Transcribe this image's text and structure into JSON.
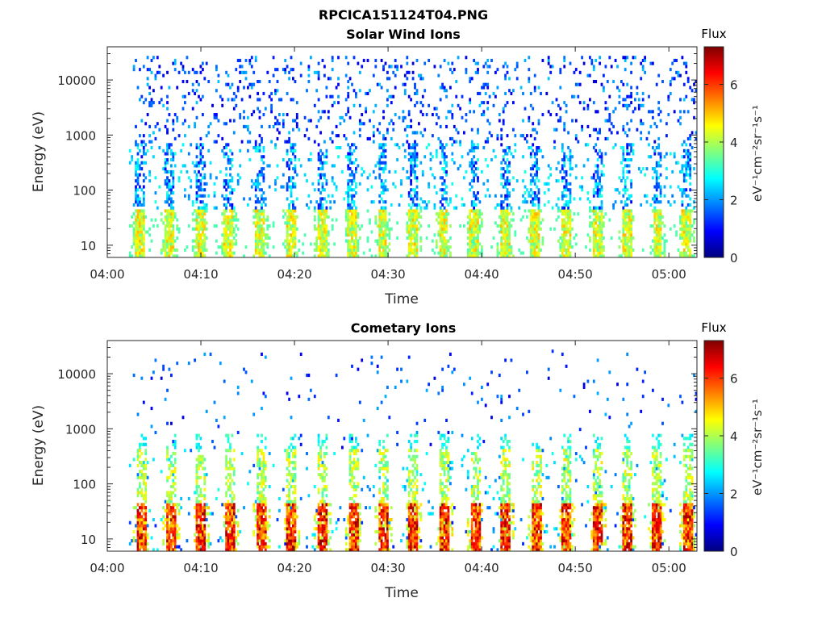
{
  "figure": {
    "title": "RPCICA151124T04.PNG"
  },
  "colormap": {
    "stops": [
      "#00007f",
      "#0000ff",
      "#007fff",
      "#00ffff",
      "#7fff7f",
      "#ffff00",
      "#ff7f00",
      "#ff0000",
      "#7f0000"
    ]
  },
  "chart_data": [
    {
      "type": "heatmap",
      "title": "Solar Wind Ions",
      "xlabel": "Time",
      "ylabel": "Energy (eV)",
      "y_scale": "log",
      "ylim": [
        6,
        40000
      ],
      "xlim": [
        "04:00",
        "05:03"
      ],
      "x_ticks": [
        "04:00",
        "04:10",
        "04:20",
        "04:30",
        "04:40",
        "04:50",
        "05:00"
      ],
      "y_ticks": [
        "10",
        "100",
        "1000",
        "10000"
      ],
      "colorbar": {
        "label": "Flux",
        "unit_label": "eV⁻¹cm⁻²sr⁻¹s⁻¹",
        "range": [
          0,
          7.3
        ],
        "ticks": [
          "0",
          "2",
          "4",
          "6"
        ]
      },
      "bursts_minutes": [
        3.3,
        6.5,
        9.8,
        12.9,
        16.2,
        19.5,
        22.8,
        26.1,
        29.3,
        32.6,
        35.8,
        39.1,
        42.4,
        45.6,
        48.9,
        52.2,
        55.4,
        58.7,
        61.8
      ]
    },
    {
      "type": "heatmap",
      "title": "Cometary Ions",
      "xlabel": "Time",
      "ylabel": "Energy (eV)",
      "y_scale": "log",
      "ylim": [
        6,
        40000
      ],
      "xlim": [
        "04:00",
        "05:03"
      ],
      "x_ticks": [
        "04:00",
        "04:10",
        "04:20",
        "04:30",
        "04:40",
        "04:50",
        "05:00"
      ],
      "y_ticks": [
        "10",
        "100",
        "1000",
        "10000"
      ],
      "colorbar": {
        "label": "Flux",
        "unit_label": "eV⁻¹cm⁻²sr⁻¹s⁻¹",
        "range": [
          0,
          7.3
        ],
        "ticks": [
          "0",
          "2",
          "4",
          "6"
        ]
      },
      "bursts_minutes": [
        3.5,
        6.7,
        9.9,
        13.1,
        16.4,
        19.6,
        22.9,
        26.2,
        29.4,
        32.6,
        35.9,
        39.2,
        42.5,
        45.7,
        49.0,
        52.3,
        55.5,
        58.6,
        61.9
      ]
    }
  ]
}
